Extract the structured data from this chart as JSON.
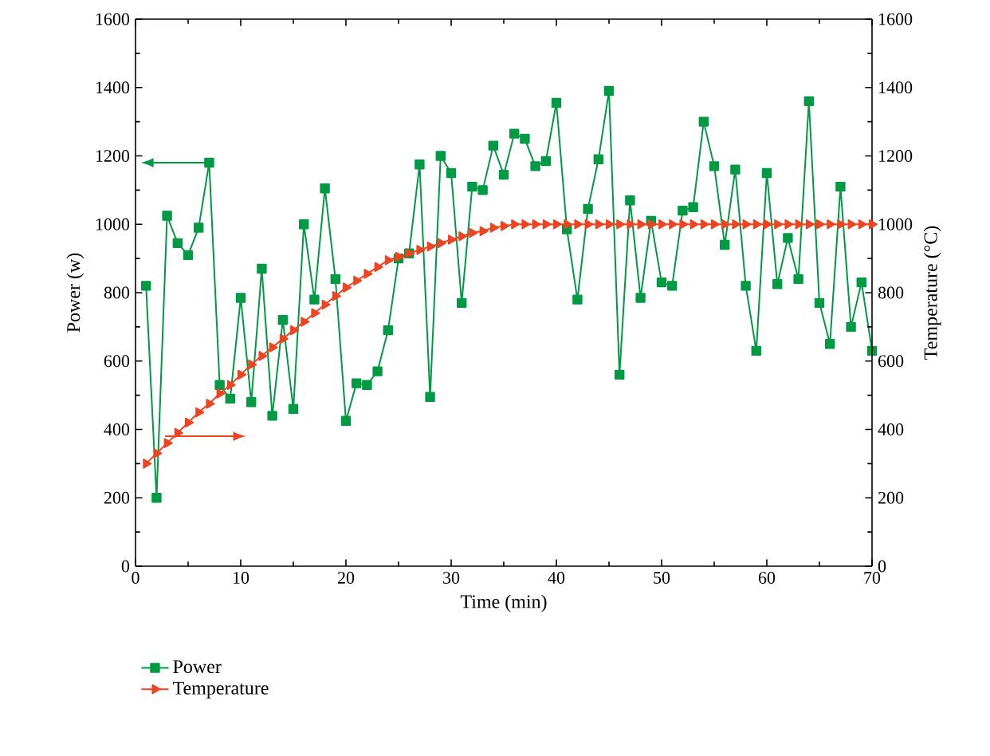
{
  "chart_data": {
    "type": "line",
    "xlabel": "Time (min)",
    "ylabel": "Power (w)",
    "y2label": "Temperature (°C)",
    "xlim": [
      0,
      70
    ],
    "xticks": [
      0,
      10,
      20,
      30,
      40,
      50,
      60,
      70
    ],
    "ylim": [
      0,
      1600
    ],
    "yticks": [
      0,
      200,
      400,
      600,
      800,
      1000,
      1200,
      1400,
      1600
    ],
    "y2lim": [
      0,
      1600
    ],
    "y2ticks": [
      0,
      200,
      400,
      600,
      800,
      1000,
      1200,
      1400,
      1600
    ],
    "legend": "bottom left",
    "grid": false,
    "series": [
      {
        "name": "Power",
        "color": "#009944",
        "marker": "square",
        "x": [
          1,
          2,
          3,
          4,
          5,
          6,
          7,
          8,
          9,
          10,
          11,
          12,
          13,
          14,
          15,
          16,
          17,
          18,
          19,
          20,
          21,
          22,
          23,
          24,
          25,
          26,
          27,
          28,
          29,
          30,
          31,
          32,
          33,
          34,
          35,
          36,
          37,
          38,
          39,
          40,
          41,
          42,
          43,
          44,
          45,
          46,
          47,
          48,
          49,
          50,
          51,
          52,
          53,
          54,
          55,
          56,
          57,
          58,
          59,
          60,
          61,
          62,
          63,
          64,
          65,
          66,
          67,
          68,
          69,
          70
        ],
        "values": [
          820,
          200,
          1025,
          945,
          910,
          990,
          1180,
          530,
          490,
          785,
          480,
          870,
          440,
          720,
          460,
          1000,
          780,
          1105,
          840,
          425,
          535,
          530,
          570,
          690,
          900,
          915,
          1175,
          495,
          1200,
          1150,
          770,
          1110,
          1100,
          1230,
          1145,
          1265,
          1250,
          1170,
          1185,
          1355,
          985,
          780,
          1045,
          1190,
          1390,
          560,
          1070,
          785,
          1010,
          830,
          820,
          1040,
          1050,
          1300,
          1170,
          940,
          1160,
          820,
          630,
          1150,
          825,
          960,
          840,
          1360,
          770,
          650,
          1110,
          700,
          830,
          630
        ]
      },
      {
        "name": "Temperature",
        "color": "#ee4422",
        "marker": "triangle",
        "axis": "y2",
        "x": [
          1,
          2,
          3,
          4,
          5,
          6,
          7,
          8,
          9,
          10,
          11,
          12,
          13,
          14,
          15,
          16,
          17,
          18,
          19,
          20,
          21,
          22,
          23,
          24,
          25,
          26,
          27,
          28,
          29,
          30,
          31,
          32,
          33,
          34,
          35,
          36,
          37,
          38,
          39,
          40,
          41,
          42,
          43,
          44,
          45,
          46,
          47,
          48,
          49,
          50,
          51,
          52,
          53,
          54,
          55,
          56,
          57,
          58,
          59,
          60,
          61,
          62,
          63,
          64,
          65,
          66,
          67,
          68,
          69,
          70
        ],
        "values": [
          300,
          330,
          360,
          390,
          420,
          450,
          475,
          505,
          530,
          560,
          590,
          615,
          640,
          665,
          690,
          715,
          740,
          765,
          790,
          815,
          835,
          855,
          875,
          895,
          905,
          915,
          925,
          935,
          945,
          955,
          965,
          975,
          980,
          990,
          995,
          1000,
          1000,
          1000,
          1000,
          1000,
          1000,
          1000,
          1000,
          1000,
          1000,
          1000,
          1000,
          1000,
          1000,
          1000,
          1000,
          1000,
          1000,
          1000,
          1000,
          1000,
          1000,
          1000,
          1000,
          1000,
          1000,
          1000,
          1000,
          1000,
          1000,
          1000,
          1000,
          1000,
          1000,
          1000
        ]
      }
    ]
  }
}
